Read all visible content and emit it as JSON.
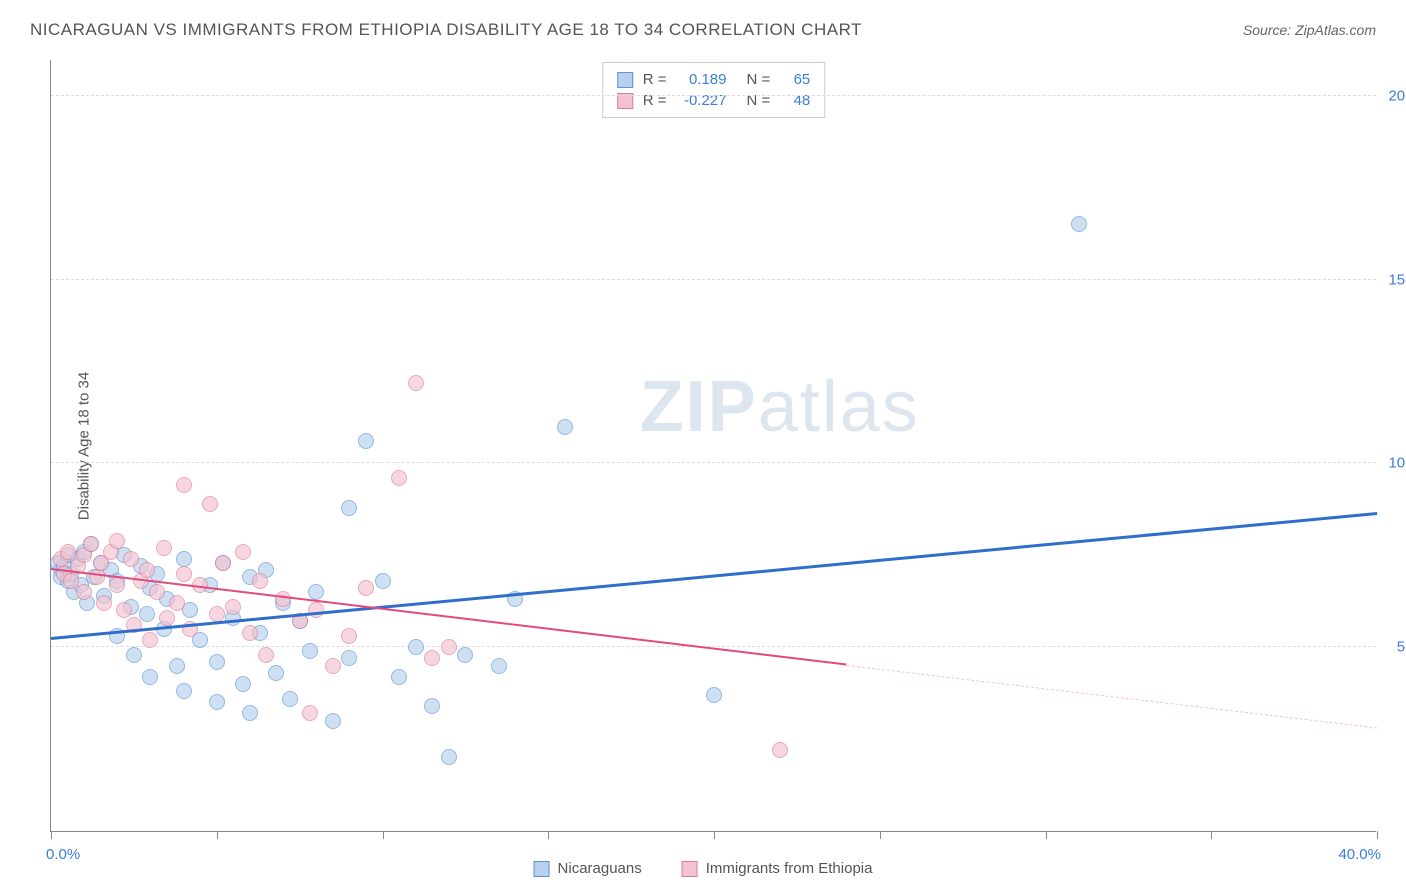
{
  "title": "NICARAGUAN VS IMMIGRANTS FROM ETHIOPIA DISABILITY AGE 18 TO 34 CORRELATION CHART",
  "source_label": "Source:",
  "source_value": "ZipAtlas.com",
  "y_axis_label": "Disability Age 18 to 34",
  "watermark_bold": "ZIP",
  "watermark_light": "atlas",
  "chart": {
    "type": "scatter",
    "xlim": [
      0,
      40
    ],
    "ylim": [
      0,
      21
    ],
    "x_ticks": [
      0,
      5,
      10,
      15,
      20,
      25,
      30,
      35,
      40
    ],
    "y_ticks": [
      5,
      10,
      15,
      20
    ],
    "y_tick_labels": [
      "5.0%",
      "10.0%",
      "15.0%",
      "20.0%"
    ],
    "x_corner_left": "0.0%",
    "x_corner_right": "40.0%",
    "background_color": "#ffffff",
    "grid_color": "#dddddd",
    "axis_color": "#888888",
    "value_color": "#3b7dd8"
  },
  "series": [
    {
      "name": "Nicaraguans",
      "fill": "#b7d0ee",
      "stroke": "#5b93d4",
      "opacity": 0.65,
      "marker_radius": 8,
      "r_value": "0.189",
      "n_value": "65",
      "trend": {
        "x1": 0,
        "y1": 5.2,
        "x2": 40,
        "y2": 8.6,
        "color": "#2f6fc9",
        "width": 2.5,
        "dashed": false
      },
      "points": [
        [
          0.2,
          7.3
        ],
        [
          0.3,
          7.1
        ],
        [
          0.3,
          6.9
        ],
        [
          0.4,
          7.2
        ],
        [
          0.5,
          6.8
        ],
        [
          0.5,
          7.5
        ],
        [
          0.6,
          7.0
        ],
        [
          0.7,
          6.5
        ],
        [
          0.8,
          7.4
        ],
        [
          0.9,
          6.7
        ],
        [
          1.0,
          7.6
        ],
        [
          1.1,
          6.2
        ],
        [
          1.2,
          7.8
        ],
        [
          1.3,
          6.9
        ],
        [
          1.5,
          7.3
        ],
        [
          1.6,
          6.4
        ],
        [
          1.8,
          7.1
        ],
        [
          2.0,
          6.8
        ],
        [
          2.0,
          5.3
        ],
        [
          2.2,
          7.5
        ],
        [
          2.4,
          6.1
        ],
        [
          2.5,
          4.8
        ],
        [
          2.7,
          7.2
        ],
        [
          2.9,
          5.9
        ],
        [
          3.0,
          6.6
        ],
        [
          3.0,
          4.2
        ],
        [
          3.2,
          7.0
        ],
        [
          3.4,
          5.5
        ],
        [
          3.5,
          6.3
        ],
        [
          3.8,
          4.5
        ],
        [
          4.0,
          7.4
        ],
        [
          4.0,
          3.8
        ],
        [
          4.2,
          6.0
        ],
        [
          4.5,
          5.2
        ],
        [
          4.8,
          6.7
        ],
        [
          5.0,
          4.6
        ],
        [
          5.0,
          3.5
        ],
        [
          5.2,
          7.3
        ],
        [
          5.5,
          5.8
        ],
        [
          5.8,
          4.0
        ],
        [
          6.0,
          6.9
        ],
        [
          6.0,
          3.2
        ],
        [
          6.3,
          5.4
        ],
        [
          6.5,
          7.1
        ],
        [
          6.8,
          4.3
        ],
        [
          7.0,
          6.2
        ],
        [
          7.2,
          3.6
        ],
        [
          7.5,
          5.7
        ],
        [
          7.8,
          4.9
        ],
        [
          8.0,
          6.5
        ],
        [
          8.5,
          3.0
        ],
        [
          9.0,
          8.8
        ],
        [
          9.0,
          4.7
        ],
        [
          9.5,
          10.6
        ],
        [
          10.0,
          6.8
        ],
        [
          10.5,
          4.2
        ],
        [
          11.0,
          5.0
        ],
        [
          11.5,
          3.4
        ],
        [
          12.0,
          2.0
        ],
        [
          12.5,
          4.8
        ],
        [
          13.5,
          4.5
        ],
        [
          14.0,
          6.3
        ],
        [
          15.5,
          11.0
        ],
        [
          20.0,
          3.7
        ],
        [
          31.0,
          16.5
        ]
      ]
    },
    {
      "name": "Immigrants from Ethiopia",
      "fill": "#f4c2cf",
      "stroke": "#e07b9a",
      "opacity": 0.65,
      "marker_radius": 8,
      "r_value": "-0.227",
      "n_value": "48",
      "trend": {
        "x1": 0,
        "y1": 7.1,
        "x2": 24,
        "y2": 4.5,
        "color": "#e24a7a",
        "width": 2,
        "dashed": false
      },
      "trend_extend": {
        "x1": 24,
        "y1": 4.5,
        "x2": 40,
        "y2": 2.8,
        "color": "#f4c2cf",
        "width": 1,
        "dashed": true
      },
      "points": [
        [
          0.3,
          7.4
        ],
        [
          0.4,
          7.0
        ],
        [
          0.5,
          7.6
        ],
        [
          0.6,
          6.8
        ],
        [
          0.8,
          7.2
        ],
        [
          1.0,
          7.5
        ],
        [
          1.0,
          6.5
        ],
        [
          1.2,
          7.8
        ],
        [
          1.4,
          6.9
        ],
        [
          1.5,
          7.3
        ],
        [
          1.6,
          6.2
        ],
        [
          1.8,
          7.6
        ],
        [
          2.0,
          6.7
        ],
        [
          2.0,
          7.9
        ],
        [
          2.2,
          6.0
        ],
        [
          2.4,
          7.4
        ],
        [
          2.5,
          5.6
        ],
        [
          2.7,
          6.8
        ],
        [
          2.9,
          7.1
        ],
        [
          3.0,
          5.2
        ],
        [
          3.2,
          6.5
        ],
        [
          3.4,
          7.7
        ],
        [
          3.5,
          5.8
        ],
        [
          3.8,
          6.2
        ],
        [
          4.0,
          7.0
        ],
        [
          4.0,
          9.4
        ],
        [
          4.2,
          5.5
        ],
        [
          4.5,
          6.7
        ],
        [
          4.8,
          8.9
        ],
        [
          5.0,
          5.9
        ],
        [
          5.2,
          7.3
        ],
        [
          5.5,
          6.1
        ],
        [
          5.8,
          7.6
        ],
        [
          6.0,
          5.4
        ],
        [
          6.3,
          6.8
        ],
        [
          6.5,
          4.8
        ],
        [
          7.0,
          6.3
        ],
        [
          7.5,
          5.7
        ],
        [
          7.8,
          3.2
        ],
        [
          8.0,
          6.0
        ],
        [
          8.5,
          4.5
        ],
        [
          9.0,
          5.3
        ],
        [
          9.5,
          6.6
        ],
        [
          10.5,
          9.6
        ],
        [
          11.0,
          12.2
        ],
        [
          11.5,
          4.7
        ],
        [
          12.0,
          5.0
        ],
        [
          22.0,
          2.2
        ]
      ]
    }
  ],
  "legend_stats": {
    "r_label": "R =",
    "n_label": "N ="
  },
  "bottom_legend": [
    {
      "label": "Nicaraguans",
      "fill": "#b7d0ee",
      "stroke": "#5b93d4"
    },
    {
      "label": "Immigrants from Ethiopia",
      "fill": "#f4c2cf",
      "stroke": "#e07b9a"
    }
  ]
}
